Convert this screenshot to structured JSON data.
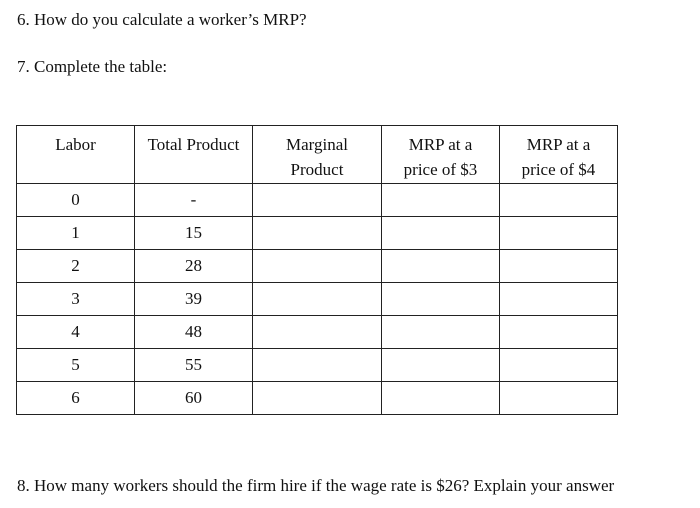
{
  "questions": {
    "q6": "6. How do you calculate a worker’s MRP?",
    "q7": "7. Complete the table:",
    "q8": "8. How many workers should the firm hire if the wage rate is $26? Explain your answer"
  },
  "table": {
    "headers": [
      [
        "Labor"
      ],
      [
        "Total Product"
      ],
      [
        "Marginal",
        "Product"
      ],
      [
        "MRP at a",
        "price of $3"
      ],
      [
        "MRP at a",
        "price of $4"
      ]
    ],
    "rows": [
      [
        "0",
        "-",
        "",
        "",
        ""
      ],
      [
        "1",
        "15",
        "",
        "",
        ""
      ],
      [
        "2",
        "28",
        "",
        "",
        ""
      ],
      [
        "3",
        "39",
        "",
        "",
        ""
      ],
      [
        "4",
        "48",
        "",
        "",
        ""
      ],
      [
        "5",
        "55",
        "",
        "",
        ""
      ],
      [
        "6",
        "60",
        "",
        "",
        ""
      ]
    ]
  }
}
